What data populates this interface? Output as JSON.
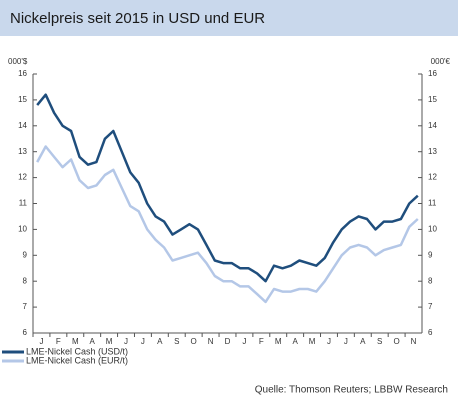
{
  "chart_data": {
    "type": "line",
    "title": "Nickelpreis seit 2015 in USD und EUR",
    "y_unit_left": "000'$",
    "y_unit_right": "000'€",
    "source": "Quelle: Thomson Reuters; LBBW Research",
    "categories": [
      "J",
      null,
      "F",
      null,
      "M",
      null,
      "A",
      null,
      "M",
      null,
      "J",
      null,
      "J",
      null,
      "A",
      null,
      "S",
      null,
      "O",
      null,
      "N",
      null,
      "D",
      null,
      "J",
      null,
      "F",
      null,
      "M",
      null,
      "A",
      null,
      "M",
      null,
      "J",
      null,
      "J",
      null,
      "A",
      null,
      "S",
      null,
      "O",
      null,
      "N",
      null
    ],
    "series": [
      {
        "name": "LME-Nickel Cash (USD/t)",
        "color": "#1f4e7d",
        "values": [
          14.8,
          15.2,
          14.5,
          14.0,
          13.8,
          12.8,
          12.5,
          12.6,
          13.5,
          13.8,
          13.0,
          12.2,
          11.8,
          11.0,
          10.5,
          10.3,
          9.8,
          10.0,
          10.2,
          10.0,
          9.4,
          8.8,
          8.7,
          8.7,
          8.5,
          8.5,
          8.3,
          8.0,
          8.6,
          8.5,
          8.6,
          8.8,
          8.7,
          8.6,
          8.9,
          9.5,
          10.0,
          10.3,
          10.5,
          10.4,
          10.0,
          10.3,
          10.3,
          10.4,
          11.0,
          11.3
        ]
      },
      {
        "name": "LME-Nickel Cash (EUR/t)",
        "color": "#b4c7e7",
        "values": [
          12.6,
          13.2,
          12.8,
          12.4,
          12.7,
          11.9,
          11.6,
          11.7,
          12.1,
          12.3,
          11.6,
          10.9,
          10.7,
          10.0,
          9.6,
          9.3,
          8.8,
          8.9,
          9.0,
          9.1,
          8.7,
          8.2,
          8.0,
          8.0,
          7.8,
          7.8,
          7.5,
          7.2,
          7.7,
          7.6,
          7.6,
          7.7,
          7.7,
          7.6,
          8.0,
          8.5,
          9.0,
          9.3,
          9.4,
          9.3,
          9.0,
          9.2,
          9.3,
          9.4,
          10.1,
          10.4
        ]
      }
    ],
    "ylim": [
      6,
      16
    ],
    "yticks": [
      6,
      7,
      8,
      9,
      10,
      11,
      12,
      13,
      14,
      15,
      16
    ],
    "y2lim": [
      6,
      16
    ],
    "y2ticks": [
      6,
      7,
      8,
      9,
      10,
      11,
      12,
      13,
      14,
      15,
      16
    ],
    "grid": false
  }
}
